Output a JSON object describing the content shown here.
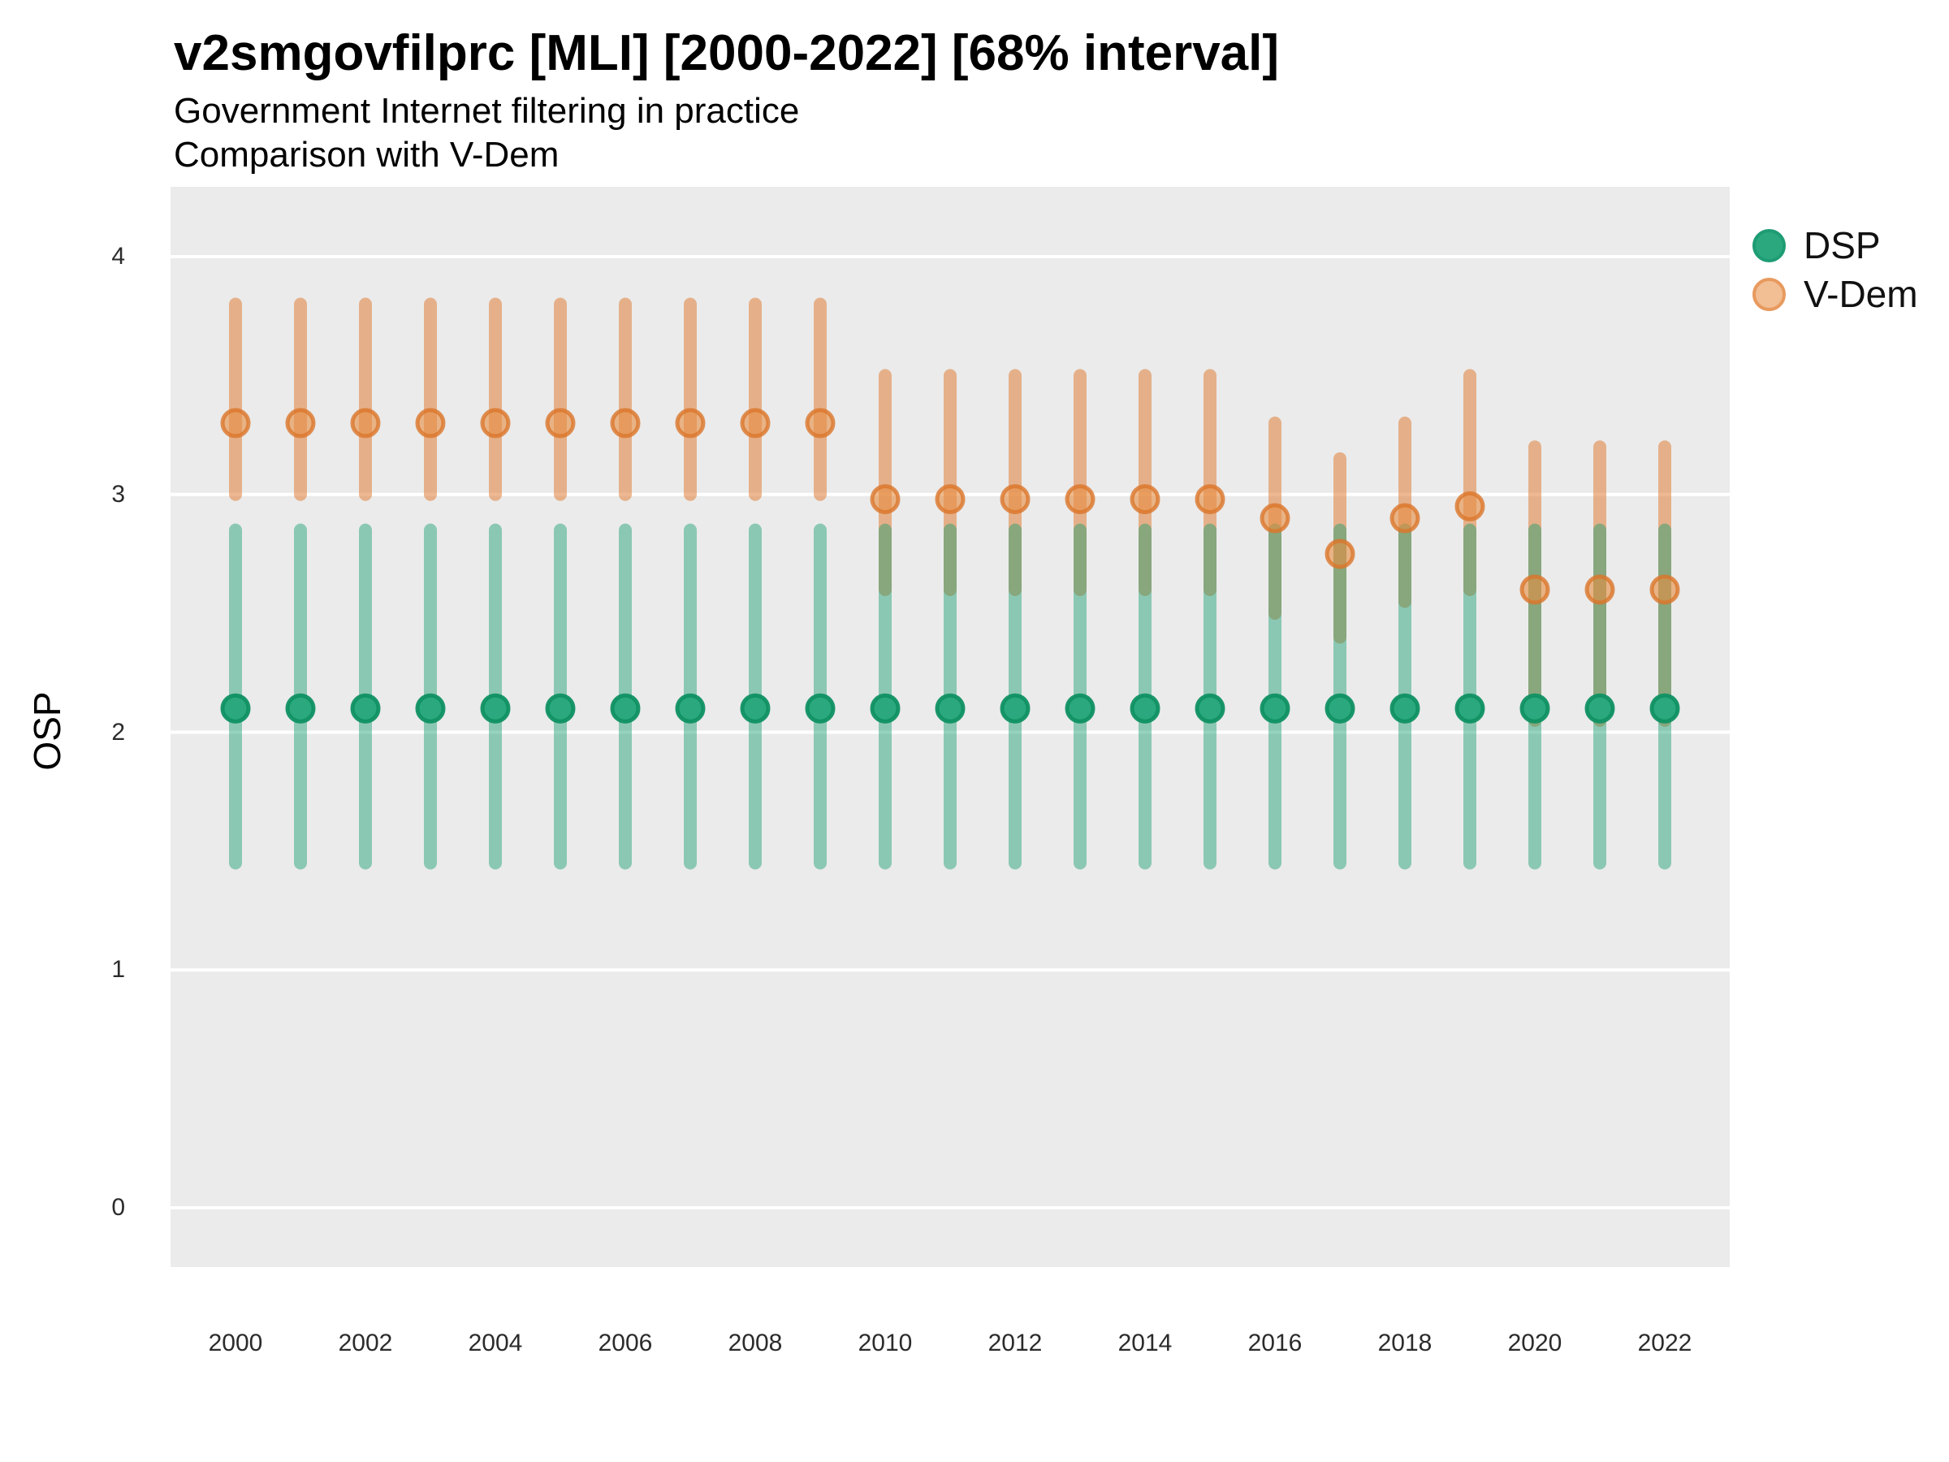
{
  "header": {
    "title": "v2smgovfilprc [MLI] [2000-2022] [68% interval]",
    "subtitle1": "Government Internet filtering in practice",
    "subtitle2": "Comparison with V-Dem"
  },
  "chart_data": {
    "type": "scatter",
    "subtype": "point-with-errorbar",
    "title": "v2smgovfilprc [MLI] [2000-2022] [68% interval]",
    "subtitle": [
      "Government Internet filtering in practice",
      "Comparison with V-Dem"
    ],
    "xlabel": "",
    "ylabel": "OSP",
    "interval": "68%",
    "x": [
      2000,
      2001,
      2002,
      2003,
      2004,
      2005,
      2006,
      2007,
      2008,
      2009,
      2010,
      2011,
      2012,
      2013,
      2014,
      2015,
      2016,
      2017,
      2018,
      2019,
      2020,
      2021,
      2022
    ],
    "series": [
      {
        "name": "DSP",
        "est": [
          2.1,
          2.1,
          2.1,
          2.1,
          2.1,
          2.1,
          2.1,
          2.1,
          2.1,
          2.1,
          2.1,
          2.1,
          2.1,
          2.1,
          2.1,
          2.1,
          2.1,
          2.1,
          2.1,
          2.1,
          2.1,
          2.1,
          2.1
        ],
        "lo": [
          1.45,
          1.45,
          1.45,
          1.45,
          1.45,
          1.45,
          1.45,
          1.45,
          1.45,
          1.45,
          1.45,
          1.45,
          1.45,
          1.45,
          1.45,
          1.45,
          1.45,
          1.45,
          1.45,
          1.45,
          1.45,
          1.45,
          1.45
        ],
        "hi": [
          2.85,
          2.85,
          2.85,
          2.85,
          2.85,
          2.85,
          2.85,
          2.85,
          2.85,
          2.85,
          2.85,
          2.85,
          2.85,
          2.85,
          2.85,
          2.85,
          2.85,
          2.85,
          2.85,
          2.85,
          2.85,
          2.85,
          2.85
        ],
        "point_fill": "#2BA87E",
        "point_stroke": "rgba(16,145,99,0.95)",
        "bar_color": "rgba(22,158,111,0.45)"
      },
      {
        "name": "V-Dem",
        "est": [
          3.3,
          3.3,
          3.3,
          3.3,
          3.3,
          3.3,
          3.3,
          3.3,
          3.3,
          3.3,
          2.98,
          2.98,
          2.98,
          2.98,
          2.98,
          2.98,
          2.9,
          2.75,
          2.9,
          2.95,
          2.6,
          2.6,
          2.6
        ],
        "lo": [
          3.0,
          3.0,
          3.0,
          3.0,
          3.0,
          3.0,
          3.0,
          3.0,
          3.0,
          3.0,
          2.6,
          2.6,
          2.6,
          2.6,
          2.6,
          2.6,
          2.5,
          2.4,
          2.55,
          2.6,
          2.05,
          2.05,
          2.05
        ],
        "hi": [
          3.8,
          3.8,
          3.8,
          3.8,
          3.8,
          3.8,
          3.8,
          3.8,
          3.8,
          3.8,
          3.5,
          3.5,
          3.5,
          3.5,
          3.5,
          3.5,
          3.3,
          3.15,
          3.3,
          3.5,
          3.2,
          3.2,
          3.2
        ],
        "point_fill": "rgba(230,140,64,0.6)",
        "point_stroke": "rgba(219,118,42,0.8)",
        "bar_color": "rgba(224,128,56,0.55)"
      }
    ],
    "legend": [
      {
        "label": "DSP",
        "marker_fill": "#2BA87E",
        "marker_stroke": "#1E9C74"
      },
      {
        "label": "V-Dem",
        "marker_fill": "#F2BE93",
        "marker_stroke": "#E89A5E"
      }
    ],
    "legend_position": "right",
    "xticks": [
      2000,
      2002,
      2004,
      2006,
      2008,
      2010,
      2012,
      2014,
      2016,
      2018,
      2020,
      2022
    ],
    "yticks": [
      0,
      1,
      2,
      3,
      4
    ],
    "xlim": [
      1999,
      2023
    ],
    "ylim": [
      -0.25,
      4.3
    ],
    "grid": {
      "horizontal_major": true,
      "vertical": false,
      "gridline_color": "#FFFFFF",
      "panel_bg": "#EBEBEB"
    }
  }
}
